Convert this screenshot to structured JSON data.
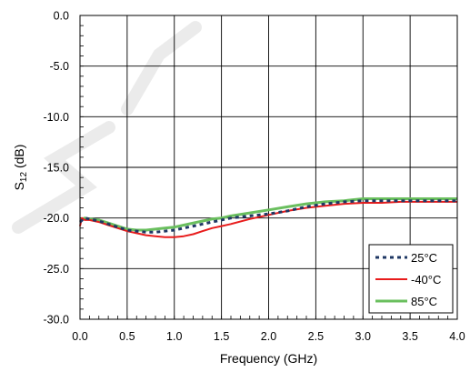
{
  "chart_data": {
    "type": "line",
    "xlabel": "Frequency (GHz)",
    "ylabel": "S12 (dB)",
    "ylabel_main": "S",
    "ylabel_sub": "12",
    "ylabel_unit": " (dB)",
    "xlim": [
      0.0,
      4.0
    ],
    "ylim": [
      -30.0,
      0.0
    ],
    "xticks": [
      "0.0",
      "0.5",
      "1.0",
      "1.5",
      "2.0",
      "2.5",
      "3.0",
      "3.5",
      "4.0"
    ],
    "yticks": [
      "0.0",
      "-5.0",
      "-10.0",
      "-15.0",
      "-20.0",
      "-25.0",
      "-30.0"
    ],
    "grid": true,
    "legend": "bottom-right",
    "series": [
      {
        "name": "25°C",
        "color": "#1f3864",
        "style": "dotted",
        "x": [
          0.0,
          0.05,
          0.1,
          0.2,
          0.3,
          0.4,
          0.5,
          0.6,
          0.7,
          0.8,
          0.9,
          1.0,
          1.1,
          1.2,
          1.3,
          1.4,
          1.5,
          1.6,
          1.8,
          2.0,
          2.2,
          2.4,
          2.6,
          2.8,
          3.0,
          3.2,
          3.4,
          3.6,
          3.8,
          4.0
        ],
        "y": [
          -20.4,
          -20.0,
          -20.1,
          -20.3,
          -20.6,
          -20.9,
          -21.2,
          -21.3,
          -21.4,
          -21.4,
          -21.3,
          -21.2,
          -21.0,
          -20.8,
          -20.6,
          -20.4,
          -20.2,
          -20.0,
          -19.8,
          -19.6,
          -19.3,
          -18.9,
          -18.6,
          -18.4,
          -18.3,
          -18.3,
          -18.3,
          -18.3,
          -18.3,
          -18.3
        ]
      },
      {
        "name": "-40°C",
        "color": "#e81c1c",
        "style": "solid",
        "x": [
          0.0,
          0.02,
          0.05,
          0.1,
          0.2,
          0.3,
          0.4,
          0.5,
          0.6,
          0.7,
          0.8,
          0.9,
          1.0,
          1.1,
          1.2,
          1.3,
          1.4,
          1.5,
          1.6,
          1.8,
          2.0,
          2.2,
          2.4,
          2.6,
          2.8,
          3.0,
          3.2,
          3.4,
          3.6,
          3.8,
          4.0
        ],
        "y": [
          -20.8,
          -20.0,
          -20.2,
          -20.2,
          -20.4,
          -20.7,
          -21.0,
          -21.3,
          -21.5,
          -21.7,
          -21.8,
          -21.9,
          -21.9,
          -21.8,
          -21.6,
          -21.3,
          -21.0,
          -20.8,
          -20.6,
          -20.1,
          -19.7,
          -19.3,
          -19.0,
          -18.8,
          -18.6,
          -18.5,
          -18.5,
          -18.4,
          -18.4,
          -18.4,
          -18.4
        ]
      },
      {
        "name": "85°C",
        "color": "#6abf5e",
        "style": "solid",
        "x": [
          0.0,
          0.05,
          0.1,
          0.2,
          0.3,
          0.4,
          0.5,
          0.6,
          0.7,
          0.8,
          0.9,
          1.0,
          1.1,
          1.2,
          1.3,
          1.4,
          1.5,
          1.6,
          1.8,
          2.0,
          2.2,
          2.4,
          2.6,
          2.8,
          3.0,
          3.2,
          3.4,
          3.6,
          3.8,
          4.0
        ],
        "y": [
          -20.2,
          -20.0,
          -20.1,
          -20.2,
          -20.5,
          -20.8,
          -21.1,
          -21.2,
          -21.2,
          -21.1,
          -21.0,
          -20.9,
          -20.7,
          -20.5,
          -20.3,
          -20.1,
          -20.0,
          -19.8,
          -19.5,
          -19.2,
          -18.9,
          -18.6,
          -18.4,
          -18.3,
          -18.1,
          -18.1,
          -18.1,
          -18.1,
          -18.1,
          -18.1
        ]
      }
    ]
  },
  "watermark": {
    "color": "#000000"
  }
}
